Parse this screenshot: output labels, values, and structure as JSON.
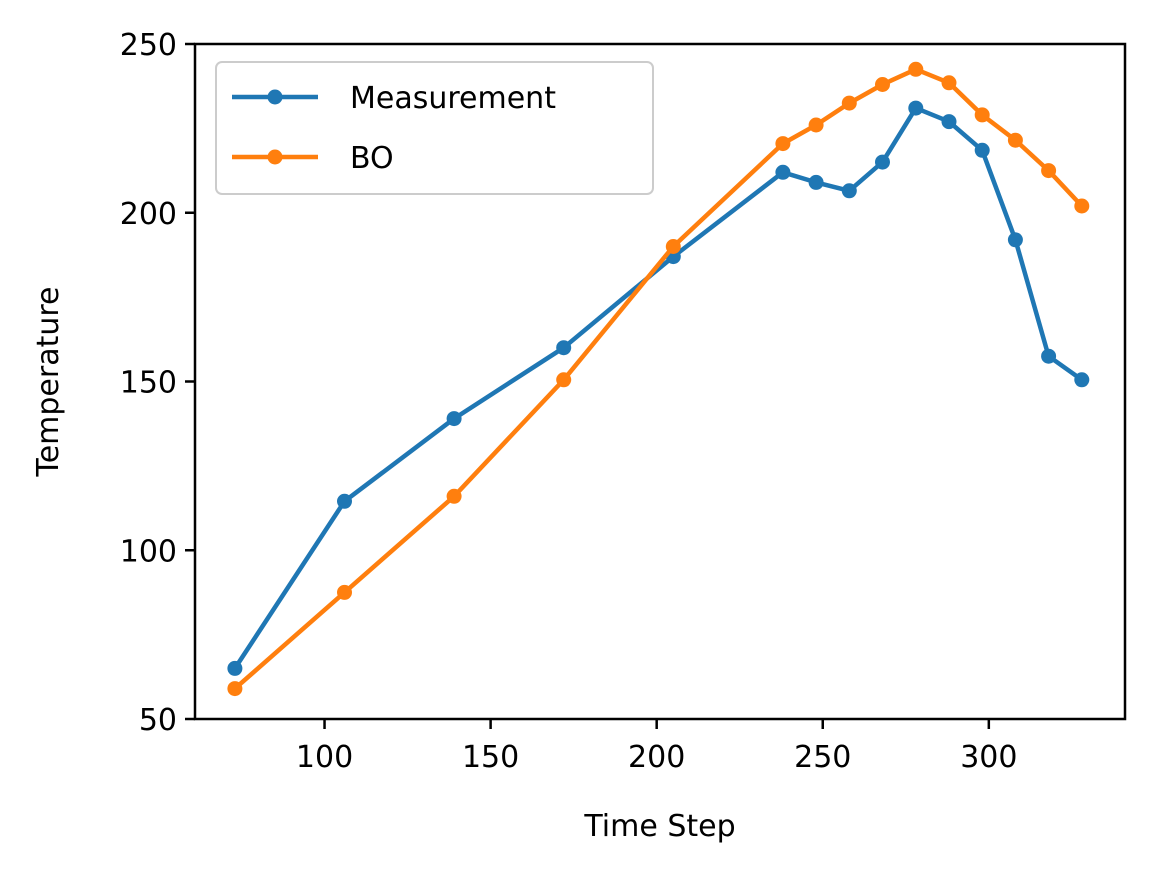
{
  "chart_data": {
    "type": "line",
    "xlabel": "Time Step",
    "ylabel": "Temperature",
    "xlim": [
      61,
      341
    ],
    "ylim": [
      50,
      250
    ],
    "xticks": [
      100,
      150,
      200,
      250,
      300
    ],
    "yticks": [
      50,
      100,
      150,
      200,
      250
    ],
    "grid": false,
    "legend_position": "top-left",
    "series": [
      {
        "name": "Measurement",
        "color": "#1f77b4",
        "x": [
          73,
          106,
          139,
          172,
          205,
          238,
          248,
          258,
          268,
          278,
          288,
          298,
          308,
          318,
          328
        ],
        "y": [
          65,
          114.5,
          139,
          160,
          187,
          212,
          209,
          206.5,
          215,
          231,
          227,
          218.5,
          192,
          157.5,
          150.5
        ]
      },
      {
        "name": "BO",
        "color": "#ff7f0e",
        "x": [
          73,
          106,
          139,
          172,
          205,
          238,
          248,
          258,
          268,
          278,
          288,
          298,
          308,
          318,
          328
        ],
        "y": [
          59,
          87.5,
          116,
          150.5,
          190,
          220.5,
          226,
          232.5,
          238,
          242.5,
          238.5,
          229,
          221.5,
          212.5,
          202
        ]
      }
    ]
  }
}
